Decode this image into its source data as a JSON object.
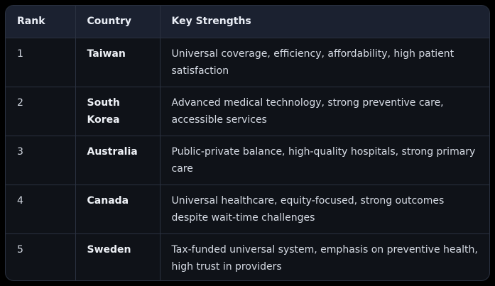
{
  "table": {
    "headers": [
      "Rank",
      "Country",
      "Key Strengths"
    ],
    "rows": [
      {
        "rank": "1",
        "country": "Taiwan",
        "strengths": "Universal coverage, efficiency, affordability, high patient satisfaction"
      },
      {
        "rank": "2",
        "country": "South Korea",
        "strengths": "Advanced medical technology, strong preventive care, accessible services"
      },
      {
        "rank": "3",
        "country": "Australia",
        "strengths": "Public-private balance, high-quality hospitals, strong primary care"
      },
      {
        "rank": "4",
        "country": "Canada",
        "strengths": "Universal healthcare, equity-focused, strong outcomes despite wait-time challenges"
      },
      {
        "rank": "5",
        "country": "Sweden",
        "strengths": "Tax-funded universal system, emphasis on preventive health, high trust in providers"
      }
    ]
  }
}
